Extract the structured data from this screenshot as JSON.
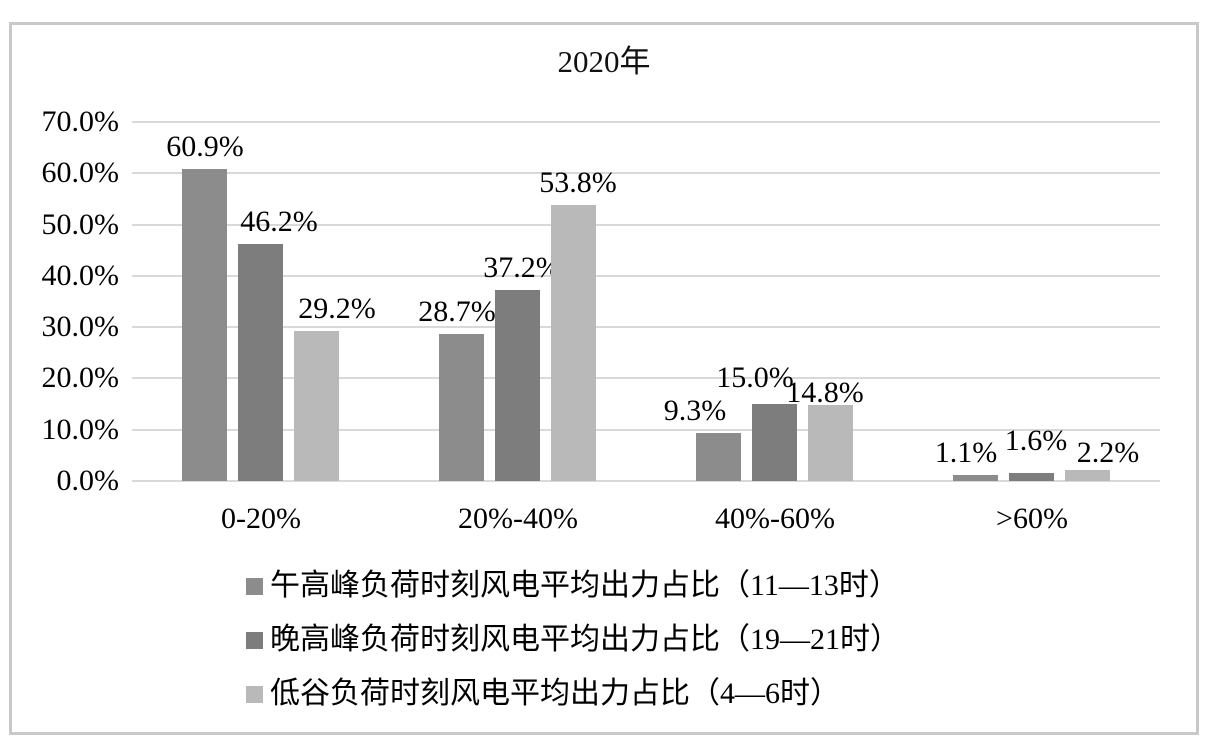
{
  "chart_data": {
    "type": "bar",
    "title": "2020年",
    "categories": [
      "0-20%",
      "20%-40%",
      "40%-60%",
      ">60%"
    ],
    "series": [
      {
        "name": "午高峰负荷时刻风电平均出力占比（11—13时）",
        "color": "#8c8c8c",
        "values": [
          60.9,
          28.7,
          9.3,
          1.1
        ],
        "labels": [
          "60.9%",
          "28.7%",
          "9.3%",
          "1.1%"
        ],
        "label_offsets": [
          [
            0,
            0
          ],
          [
            -5,
            0
          ],
          [
            -24,
            0
          ],
          [
            -10,
            0
          ]
        ]
      },
      {
        "name": "晚高峰负荷时刻风电平均出力占比（19—21时）",
        "color": "#7d7d7d",
        "values": [
          46.2,
          37.2,
          15.0,
          1.6
        ],
        "labels": [
          "46.2%",
          "37.2%",
          "15.0%",
          "1.6%"
        ],
        "label_offsets": [
          [
            18,
            0
          ],
          [
            4,
            0
          ],
          [
            -20,
            -4
          ],
          [
            4,
            -10
          ]
        ]
      },
      {
        "name": "低谷负荷时刻风电平均出力占比（4—6时）",
        "color": "#b9b9b9",
        "values": [
          29.2,
          53.8,
          14.8,
          2.2
        ],
        "labels": [
          "29.2%",
          "53.8%",
          "14.8%",
          "2.2%"
        ],
        "label_offsets": [
          [
            20,
            0
          ],
          [
            4,
            0
          ],
          [
            -6,
            10
          ],
          [
            20,
            5
          ]
        ]
      }
    ],
    "xlabel": "",
    "ylabel": "",
    "ylim": [
      0,
      70
    ],
    "ytick_step": 10,
    "y_ticks": [
      "0.0%",
      "10.0%",
      "20.0%",
      "30.0%",
      "40.0%",
      "50.0%",
      "60.0%",
      "70.0%"
    ],
    "grid": true,
    "legend_position": "bottom",
    "colors": {
      "gridline": "#d9d9d9",
      "frame_border": "#c9c9c9",
      "text": "#000000"
    }
  }
}
